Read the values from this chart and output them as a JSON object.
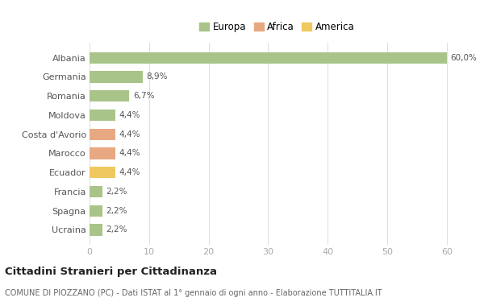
{
  "categories": [
    "Albania",
    "Germania",
    "Romania",
    "Moldova",
    "Costa d'Avorio",
    "Marocco",
    "Ecuador",
    "Francia",
    "Spagna",
    "Ucraina"
  ],
  "values": [
    60.0,
    8.9,
    6.7,
    4.4,
    4.4,
    4.4,
    4.4,
    2.2,
    2.2,
    2.2
  ],
  "labels": [
    "60,0%",
    "8,9%",
    "6,7%",
    "4,4%",
    "4,4%",
    "4,4%",
    "4,4%",
    "2,2%",
    "2,2%",
    "2,2%"
  ],
  "colors": [
    "#a8c488",
    "#a8c488",
    "#a8c488",
    "#a8c488",
    "#e8a882",
    "#e8a882",
    "#f0c860",
    "#a8c488",
    "#a8c488",
    "#a8c488"
  ],
  "legend": [
    {
      "label": "Europa",
      "color": "#a8c488"
    },
    {
      "label": "Africa",
      "color": "#e8a882"
    },
    {
      "label": "America",
      "color": "#f0c860"
    }
  ],
  "xlim": [
    0,
    63
  ],
  "xticks": [
    0,
    10,
    20,
    30,
    40,
    50,
    60
  ],
  "title": "Cittadini Stranieri per Cittadinanza",
  "subtitle": "COMUNE DI PIOZZANO (PC) - Dati ISTAT al 1° gennaio di ogni anno - Elaborazione TUTTITALIA.IT",
  "background_color": "#ffffff",
  "grid_color": "#dddddd"
}
